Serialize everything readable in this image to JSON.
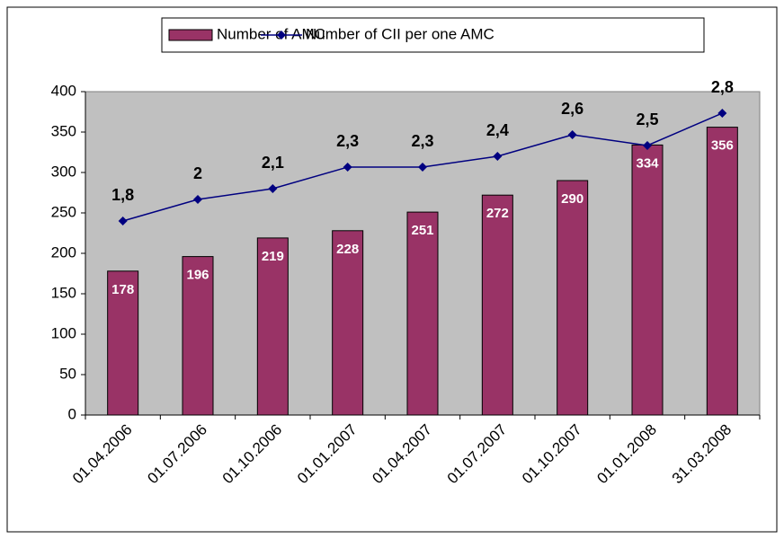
{
  "chart_data": {
    "type": "bar",
    "categories": [
      "01.04.2006",
      "01.07.2006",
      "01.10.2006",
      "01.01.2007",
      "01.04.2007",
      "01.07.2007",
      "01.10.2007",
      "01.01.2008",
      "31.03.2008"
    ],
    "series": [
      {
        "name": "Number of AMC",
        "type": "bar",
        "color": "#993366",
        "values": [
          178,
          196,
          219,
          228,
          251,
          272,
          290,
          334,
          356
        ]
      },
      {
        "name": "Number of CII per one AMC",
        "type": "line",
        "axis": "y2",
        "color": "#000080",
        "values": [
          1.8,
          2,
          2.1,
          2.3,
          2.3,
          2.4,
          2.6,
          2.5,
          2.8
        ],
        "value_labels": [
          "1,8",
          "2",
          "2,1",
          "2,3",
          "2,3",
          "2,4",
          "2,6",
          "2,5",
          "2,8"
        ]
      }
    ],
    "ylim": [
      0,
      400
    ],
    "yticks": [
      0,
      50,
      100,
      150,
      200,
      250,
      300,
      350,
      400
    ],
    "y2lim": [
      0,
      3
    ],
    "grid": false,
    "legend": "top",
    "plot_background": "#c0c0c0"
  }
}
